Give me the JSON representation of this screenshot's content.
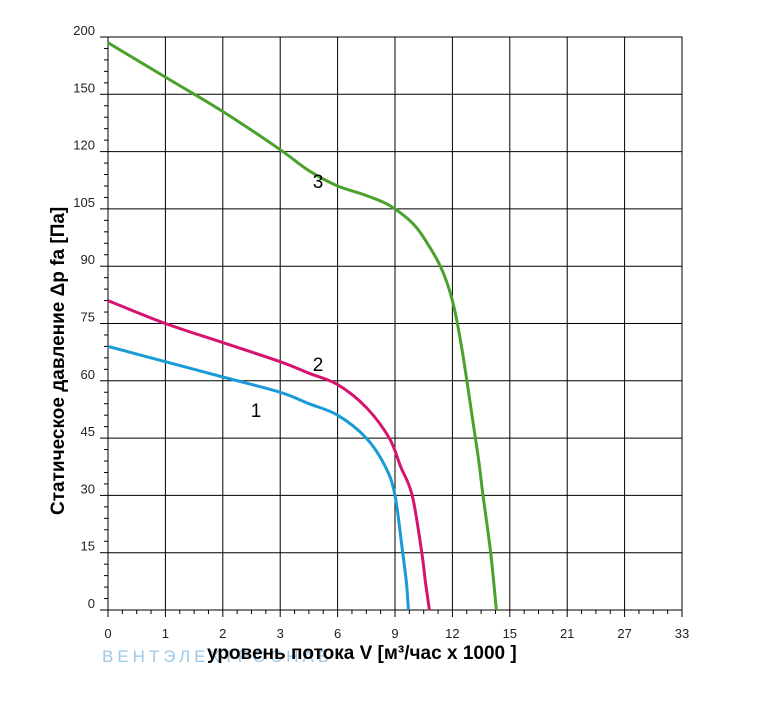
{
  "chart_data": {
    "type": "line",
    "title": "",
    "xlabel": "уровень потока  V [м³/час x 1000 ]",
    "ylabel": "Статическое давление  Δp fa [Па]",
    "x_ticks": [
      "0",
      "1",
      "2",
      "3",
      "6",
      "9",
      "12",
      "15",
      "21",
      "27",
      "33"
    ],
    "y_ticks": [
      "0",
      "15",
      "30",
      "45",
      "60",
      "75",
      "90",
      "105",
      "120",
      "150",
      "200"
    ],
    "grid": true,
    "legend": "none",
    "watermark": "ВЕНТЭЛЕКТРОСНАБ",
    "series": [
      {
        "name": "1",
        "color": "#1a9ad6",
        "points": [
          [
            0,
            69
          ],
          [
            1,
            65
          ],
          [
            2,
            61
          ],
          [
            3,
            57
          ],
          [
            4.5,
            54
          ],
          [
            6,
            51
          ],
          [
            7.5,
            45
          ],
          [
            8.5,
            37.5
          ],
          [
            9,
            30
          ],
          [
            9.4,
            15
          ],
          [
            9.6,
            7
          ],
          [
            9.7,
            0
          ]
        ]
      },
      {
        "name": "2",
        "color": "#d6136f",
        "points": [
          [
            0,
            81
          ],
          [
            1,
            75
          ],
          [
            2,
            70
          ],
          [
            3,
            65
          ],
          [
            4.5,
            62
          ],
          [
            6,
            59
          ],
          [
            7.5,
            53
          ],
          [
            8.7,
            45
          ],
          [
            9.3,
            37.5
          ],
          [
            9.9,
            30
          ],
          [
            10.4,
            15
          ],
          [
            10.6,
            7
          ],
          [
            10.8,
            0
          ]
        ]
      },
      {
        "name": "3",
        "color": "#4aa22c",
        "points": [
          [
            0,
            195
          ],
          [
            1,
            165
          ],
          [
            2,
            141
          ],
          [
            3,
            121
          ],
          [
            4.5,
            115
          ],
          [
            6,
            111
          ],
          [
            7.5,
            108.5
          ],
          [
            9,
            105
          ],
          [
            10.5,
            97.5
          ],
          [
            12,
            81
          ],
          [
            13.2,
            45
          ],
          [
            13.6,
            30
          ],
          [
            14,
            15
          ],
          [
            14.3,
            0
          ]
        ]
      }
    ]
  }
}
